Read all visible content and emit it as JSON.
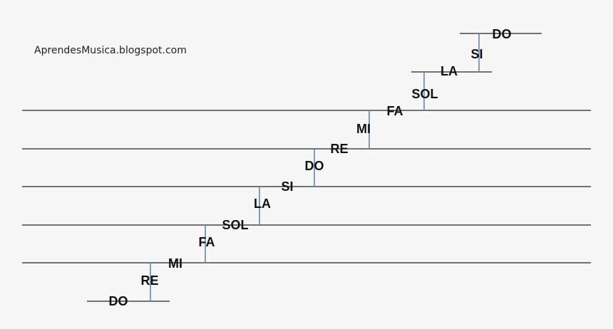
{
  "source": "AprendesMusica.blogspot.com",
  "notes": [
    {
      "label": "DO"
    },
    {
      "label": "RE"
    },
    {
      "label": "MI"
    },
    {
      "label": "FA"
    },
    {
      "label": "SOL"
    },
    {
      "label": "LA"
    },
    {
      "label": "SI"
    },
    {
      "label": "DO"
    },
    {
      "label": "RE"
    },
    {
      "label": "MI"
    },
    {
      "label": "FA"
    },
    {
      "label": "SOL"
    },
    {
      "label": "LA"
    },
    {
      "label": "SI"
    },
    {
      "label": "DO"
    }
  ]
}
